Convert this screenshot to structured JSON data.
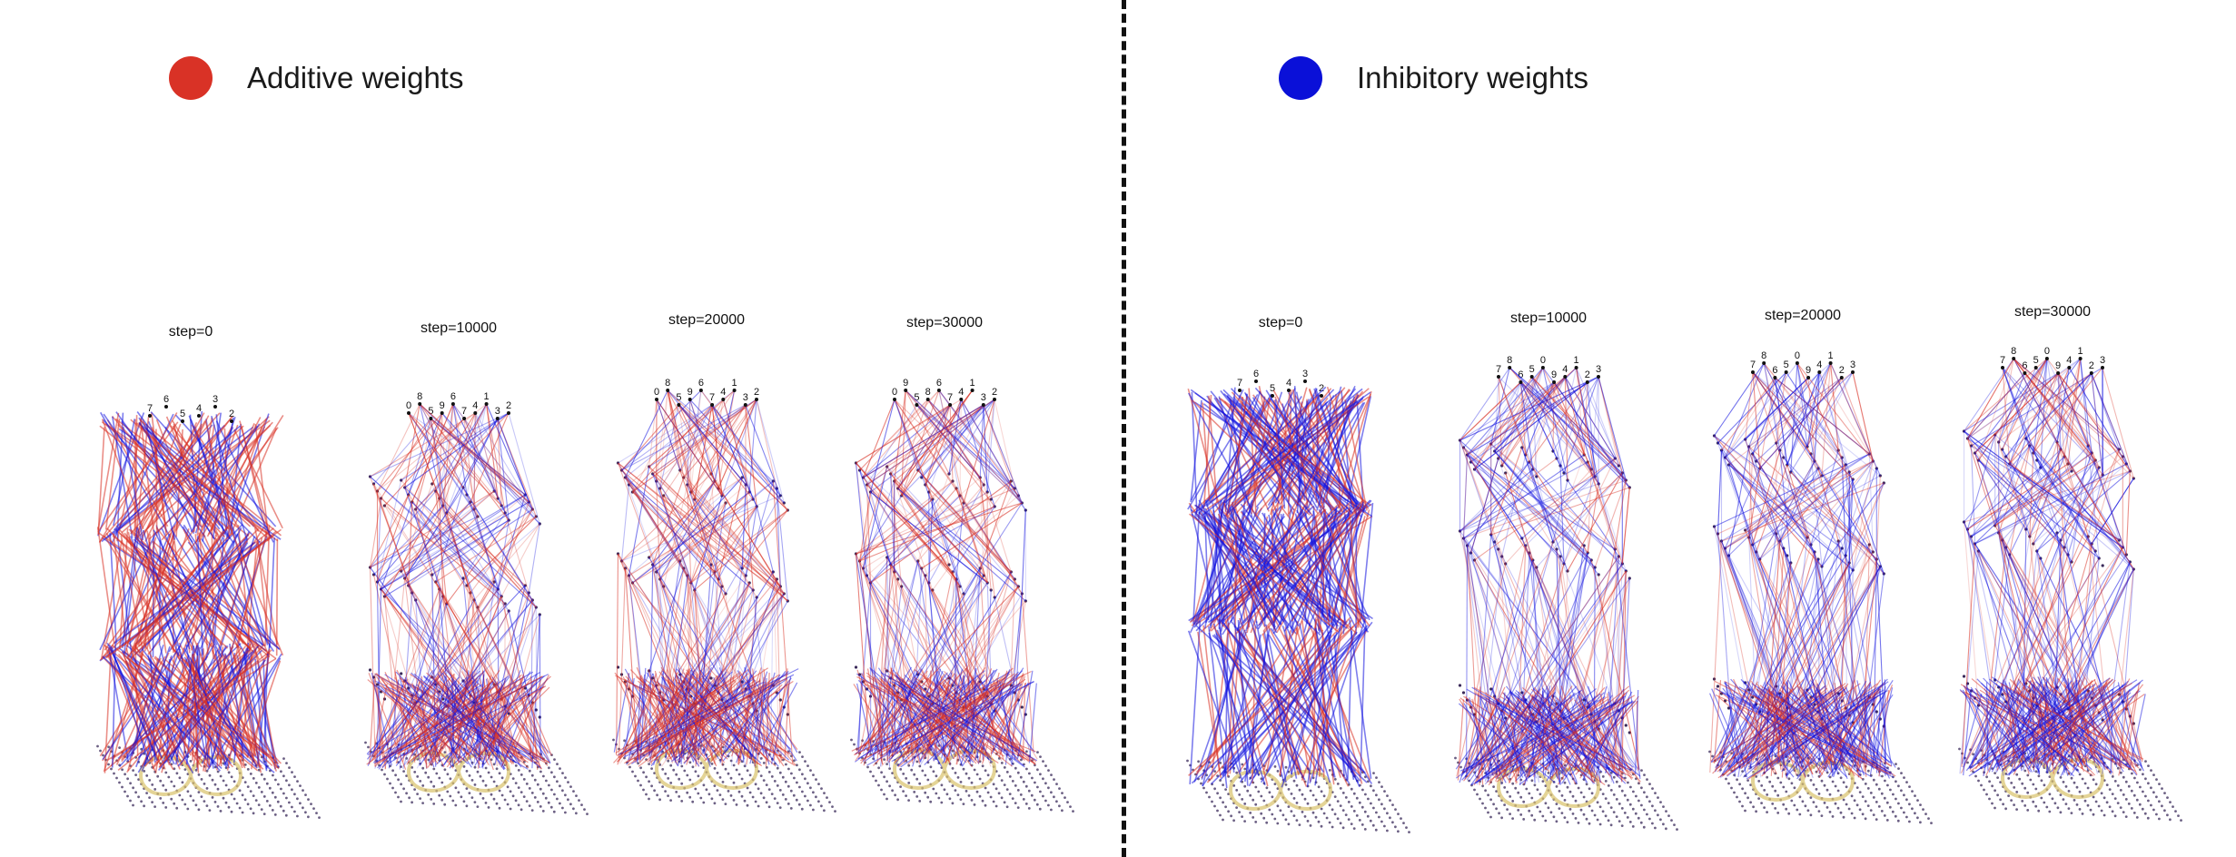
{
  "legend": {
    "left": {
      "label": "Additive weights",
      "color": "#d93226"
    },
    "right": {
      "label": "Inhibitory weights",
      "color": "#0a10d8"
    }
  },
  "colors": {
    "additive": "#d93226",
    "inhibitory": "#1414e0",
    "node": "#3a2a5a",
    "input": "#d9c26a"
  },
  "panels": {
    "left": [
      {
        "step": "step=0",
        "outputs": [
          "7",
          "6",
          "5",
          "4",
          "3",
          "2"
        ]
      },
      {
        "step": "step=10000",
        "outputs": [
          "0",
          "8",
          "5",
          "9",
          "6",
          "7",
          "4",
          "1",
          "3",
          "2"
        ]
      },
      {
        "step": "step=20000",
        "outputs": [
          "0",
          "8",
          "5",
          "9",
          "6",
          "7",
          "4",
          "1",
          "3",
          "2"
        ]
      },
      {
        "step": "step=30000",
        "outputs": [
          "0",
          "9",
          "5",
          "8",
          "6",
          "7",
          "4",
          "1",
          "3",
          "2"
        ]
      }
    ],
    "right": [
      {
        "step": "step=0",
        "outputs": [
          "7",
          "6",
          "5",
          "4",
          "3",
          "2"
        ]
      },
      {
        "step": "step=10000",
        "outputs": [
          "7",
          "8",
          "6",
          "5",
          "0",
          "9",
          "4",
          "1",
          "2",
          "3"
        ]
      },
      {
        "step": "step=20000",
        "outputs": [
          "7",
          "8",
          "6",
          "5",
          "0",
          "9",
          "4",
          "1",
          "2",
          "3"
        ]
      },
      {
        "step": "step=30000",
        "outputs": [
          "7",
          "8",
          "6",
          "5",
          "0",
          "9",
          "4",
          "1",
          "2",
          "3"
        ]
      }
    ]
  }
}
